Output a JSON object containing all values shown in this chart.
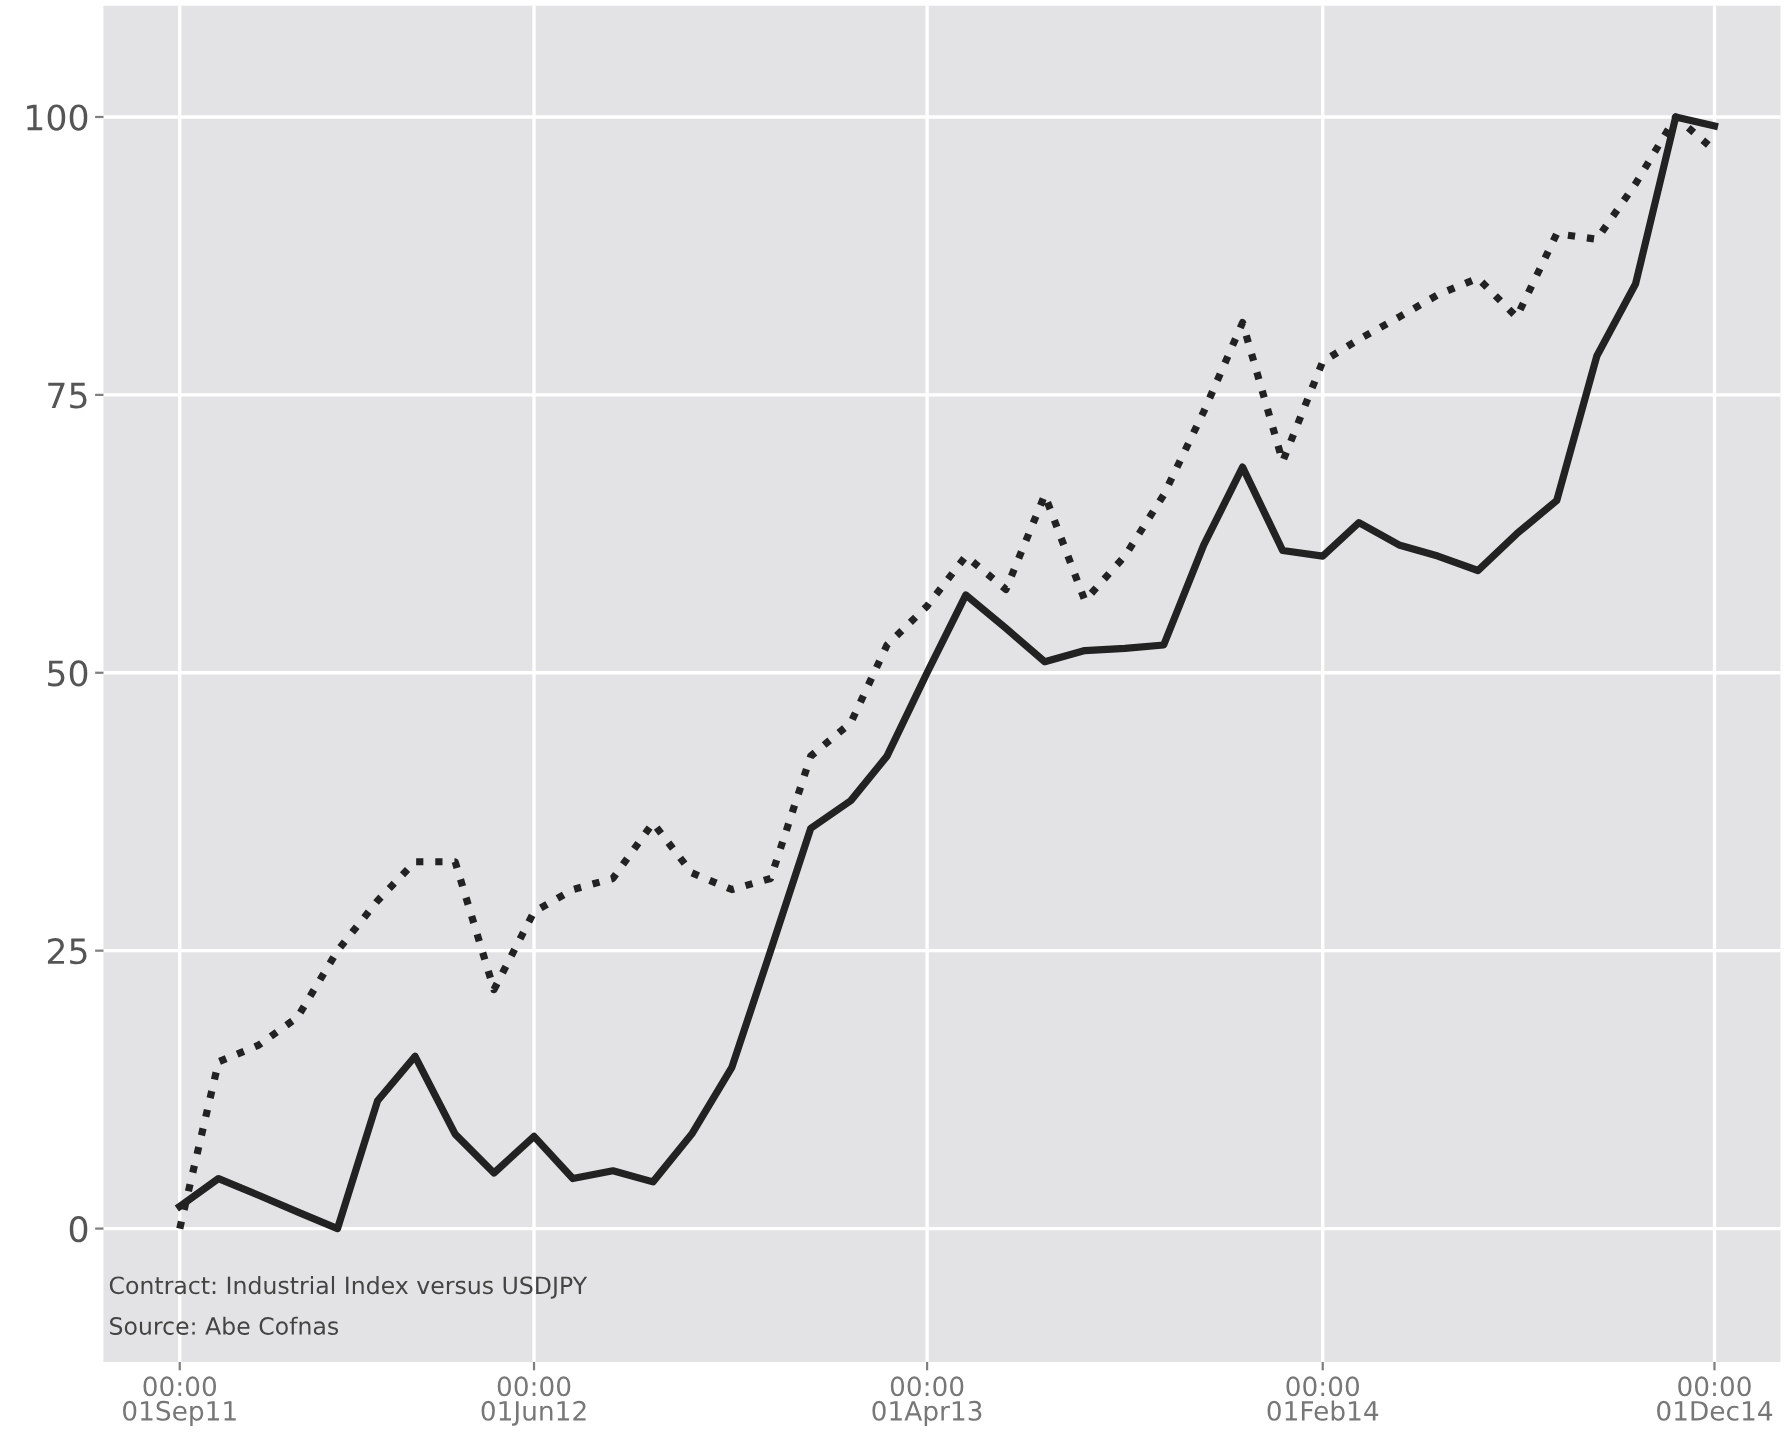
{
  "chart_data": {
    "type": "line",
    "x": [
      "2011-09",
      "2011-10",
      "2011-11",
      "2011-12",
      "2012-01",
      "2012-02",
      "2012-03",
      "2012-04",
      "2012-05",
      "2012-06",
      "2012-07",
      "2012-08",
      "2012-09",
      "2012-10",
      "2012-11",
      "2012-12",
      "2013-01",
      "2013-02",
      "2013-03",
      "2013-04",
      "2013-05",
      "2013-06",
      "2013-07",
      "2013-08",
      "2013-09",
      "2013-10",
      "2013-11",
      "2013-12",
      "2014-01",
      "2014-02",
      "2014-03",
      "2014-04",
      "2014-05",
      "2014-06",
      "2014-07",
      "2014-08",
      "2014-09",
      "2014-10",
      "2014-11",
      "2014-12"
    ],
    "series": [
      {
        "color": "#222222",
        "line_style": "solid",
        "values": [
          2,
          4.5,
          3,
          1.5,
          0,
          11.5,
          15.5,
          8.5,
          5,
          8.3,
          4.5,
          5.2,
          4.2,
          8.5,
          14.5,
          25,
          36,
          38.5,
          42.5,
          50,
          57,
          54,
          51,
          52,
          52.2,
          52.5,
          61.5,
          68.5,
          61,
          60.5,
          63.5,
          61.5,
          60.5,
          59.2,
          62.5,
          65.5,
          78.5,
          85,
          100,
          99.2
        ]
      },
      {
        "color": "#222222",
        "line_style": "dotted",
        "values": [
          0,
          15,
          16.5,
          19,
          25,
          29.5,
          33,
          33,
          21.5,
          28.5,
          30.5,
          31.5,
          36.5,
          32,
          30.5,
          31.5,
          42.5,
          45.5,
          52.5,
          56,
          60.5,
          57.5,
          66,
          56.5,
          60.5,
          66,
          73.5,
          81.5,
          69,
          78,
          80,
          82,
          84,
          85.5,
          82,
          89.5,
          89,
          94,
          100,
          97
        ]
      }
    ],
    "xlim": [
      "2011-07-04",
      "2015-01-21"
    ],
    "xticks": [
      {
        "value": "2011-09-01",
        "label": "00:00\n01Sep11"
      },
      {
        "value": "2012-06-01",
        "label": "00:00\n01Jun12"
      },
      {
        "value": "2013-04-01",
        "label": "00:00\n01Apr13"
      },
      {
        "value": "2014-02-01",
        "label": "00:00\n01Feb14"
      },
      {
        "value": "2014-12-01",
        "label": "00:00\n01Dec14"
      }
    ],
    "ylim": [
      -12,
      110
    ],
    "yticks": [
      0,
      25,
      50,
      75,
      100
    ],
    "grid": true,
    "annotations": [
      "Contract: Industrial Index versus USDJPY",
      "Source: Abe Cofnas"
    ]
  }
}
